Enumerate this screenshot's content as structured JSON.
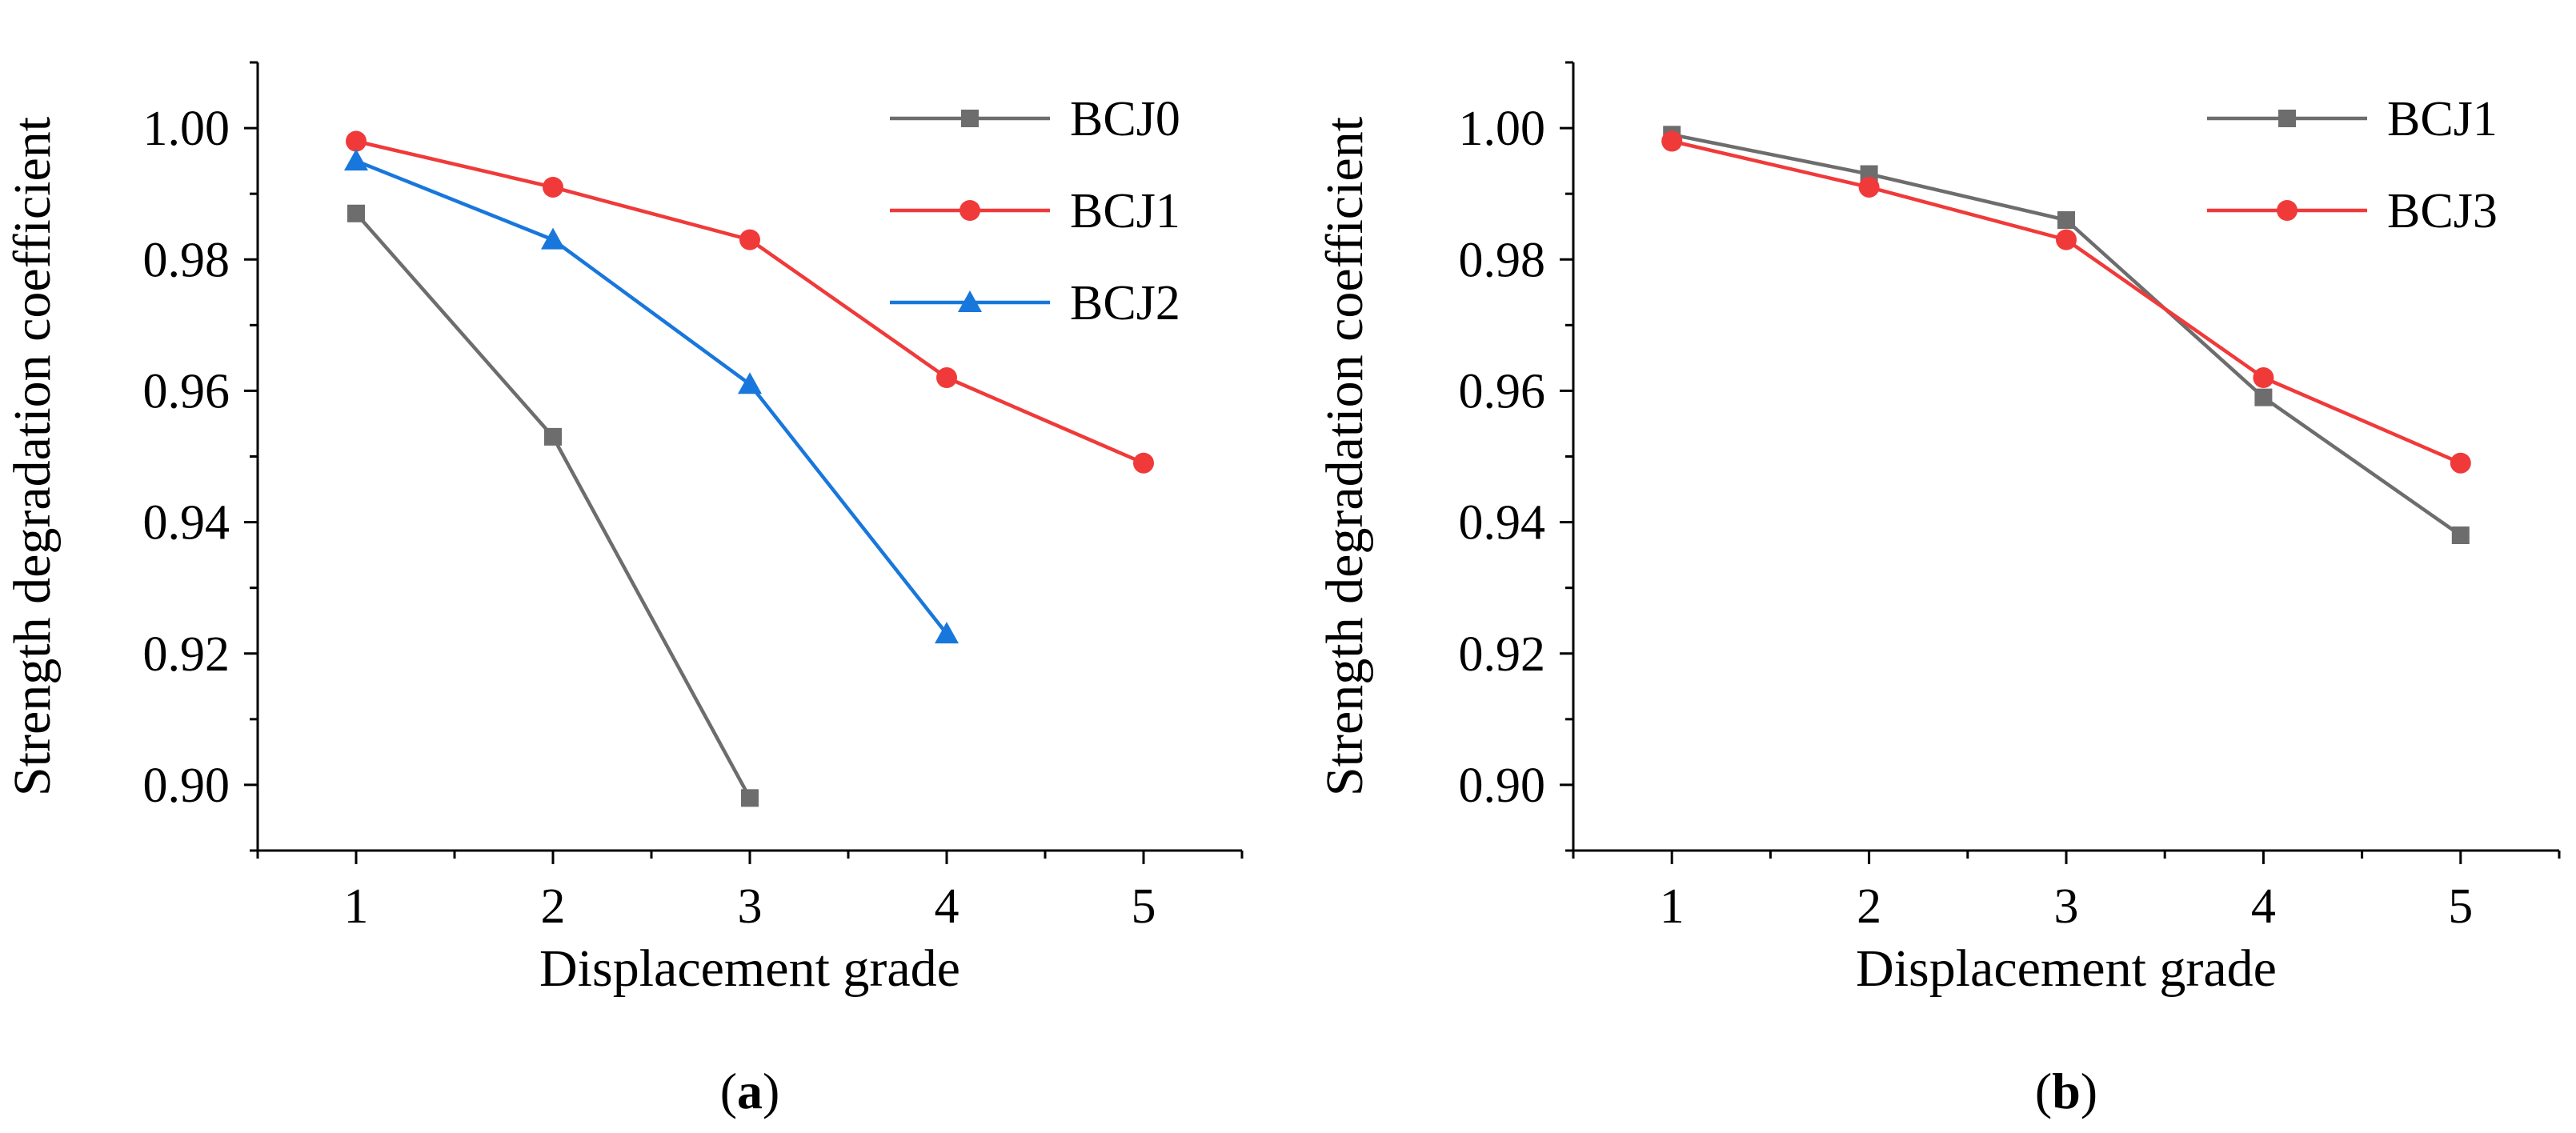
{
  "chart_data": [
    {
      "panel": "a",
      "type": "line",
      "xlabel": "Displacement grade",
      "ylabel": "Strength degradation coefficient",
      "xlim": [
        0.5,
        5.5
      ],
      "ylim": [
        0.89,
        1.01
      ],
      "xticks": [
        1,
        2,
        3,
        4,
        5
      ],
      "yticks": [
        0.9,
        0.92,
        0.94,
        0.96,
        0.98,
        1.0
      ],
      "ytick_labels": [
        "0.90",
        "0.92",
        "0.94",
        "0.96",
        "0.98",
        "1.00"
      ],
      "grid": false,
      "legend_position": "top-right",
      "panel_label": {
        "open": "(",
        "letter": "a",
        "close": ")"
      },
      "series": [
        {
          "name": "BCJ0",
          "color": "#6d6d6d",
          "marker": "square",
          "x": [
            1,
            2,
            3
          ],
          "y": [
            0.987,
            0.953,
            0.898
          ]
        },
        {
          "name": "BCJ1",
          "color": "#f03a3a",
          "marker": "circle",
          "x": [
            1,
            2,
            3,
            4,
            5
          ],
          "y": [
            0.998,
            0.991,
            0.983,
            0.962,
            0.949
          ]
        },
        {
          "name": "BCJ2",
          "color": "#1877dc",
          "marker": "triangle",
          "x": [
            1,
            2,
            3,
            4
          ],
          "y": [
            0.995,
            0.983,
            0.961,
            0.923
          ]
        }
      ]
    },
    {
      "panel": "b",
      "type": "line",
      "xlabel": "Displacement grade",
      "ylabel": "Strength degradation coefficient",
      "xlim": [
        0.5,
        5.5
      ],
      "ylim": [
        0.89,
        1.01
      ],
      "xticks": [
        1,
        2,
        3,
        4,
        5
      ],
      "yticks": [
        0.9,
        0.92,
        0.94,
        0.96,
        0.98,
        1.0
      ],
      "ytick_labels": [
        "0.90",
        "0.92",
        "0.94",
        "0.96",
        "0.98",
        "1.00"
      ],
      "grid": false,
      "legend_position": "top-right",
      "panel_label": {
        "open": "(",
        "letter": "b",
        "close": ")"
      },
      "series": [
        {
          "name": "BCJ1",
          "color": "#6d6d6d",
          "marker": "square",
          "x": [
            1,
            2,
            3,
            4,
            5
          ],
          "y": [
            0.999,
            0.993,
            0.986,
            0.959,
            0.938
          ]
        },
        {
          "name": "BCJ3",
          "color": "#f03a3a",
          "marker": "circle",
          "x": [
            1,
            2,
            3,
            4,
            5
          ],
          "y": [
            0.998,
            0.991,
            0.983,
            0.962,
            0.949
          ]
        }
      ]
    }
  ]
}
